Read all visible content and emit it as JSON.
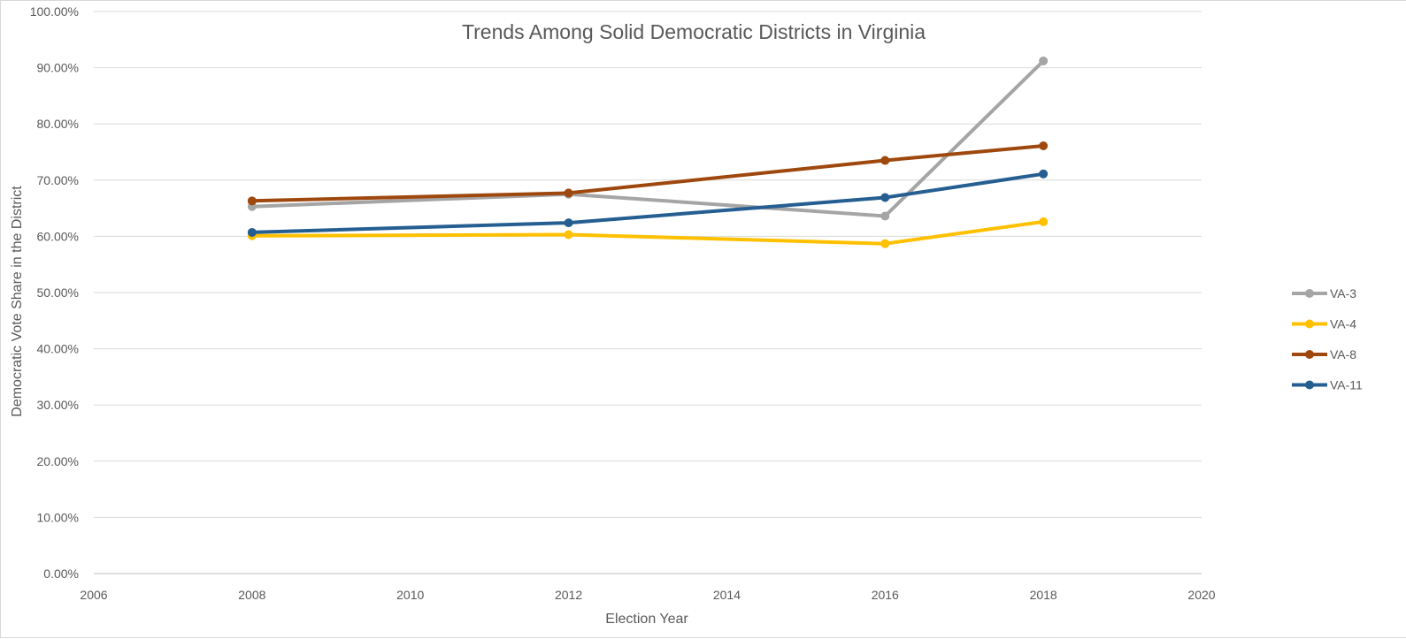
{
  "chart_data": {
    "type": "line",
    "title": "Trends Among Solid Democratic Districts in Virginia",
    "xlabel": "Election Year",
    "ylabel": "Democratic Vote Share in the District",
    "xlim": [
      2006,
      2020
    ],
    "ylim": [
      0,
      1
    ],
    "x_ticks": [
      2006,
      2008,
      2010,
      2012,
      2014,
      2016,
      2018,
      2020
    ],
    "x_tick_labels": [
      "2006",
      "2008",
      "2010",
      "2012",
      "2014",
      "2016",
      "2018",
      "2020"
    ],
    "y_ticks": [
      0,
      0.1,
      0.2,
      0.3,
      0.4,
      0.5,
      0.6,
      0.7,
      0.8,
      0.9,
      1.0
    ],
    "y_tick_labels": [
      "0.00%",
      "10.00%",
      "20.00%",
      "30.00%",
      "40.00%",
      "50.00%",
      "60.00%",
      "70.00%",
      "80.00%",
      "90.00%",
      "100.00%"
    ],
    "grid": true,
    "legend_position": "right",
    "series": [
      {
        "name": "VA-3",
        "color": "#a5a5a5",
        "x": [
          2008,
          2012,
          2016,
          2018
        ],
        "values": [
          0.653,
          0.675,
          0.636,
          0.912
        ]
      },
      {
        "name": "VA-4",
        "color": "#ffc000",
        "x": [
          2008,
          2012,
          2016,
          2018
        ],
        "values": [
          0.601,
          0.603,
          0.587,
          0.626
        ]
      },
      {
        "name": "VA-8",
        "color": "#9e480e",
        "x": [
          2008,
          2012,
          2016,
          2018
        ],
        "values": [
          0.663,
          0.677,
          0.735,
          0.761
        ]
      },
      {
        "name": "VA-11",
        "color": "#255e91",
        "x": [
          2008,
          2012,
          2016,
          2018
        ],
        "values": [
          0.607,
          0.624,
          0.669,
          0.711
        ]
      }
    ]
  }
}
